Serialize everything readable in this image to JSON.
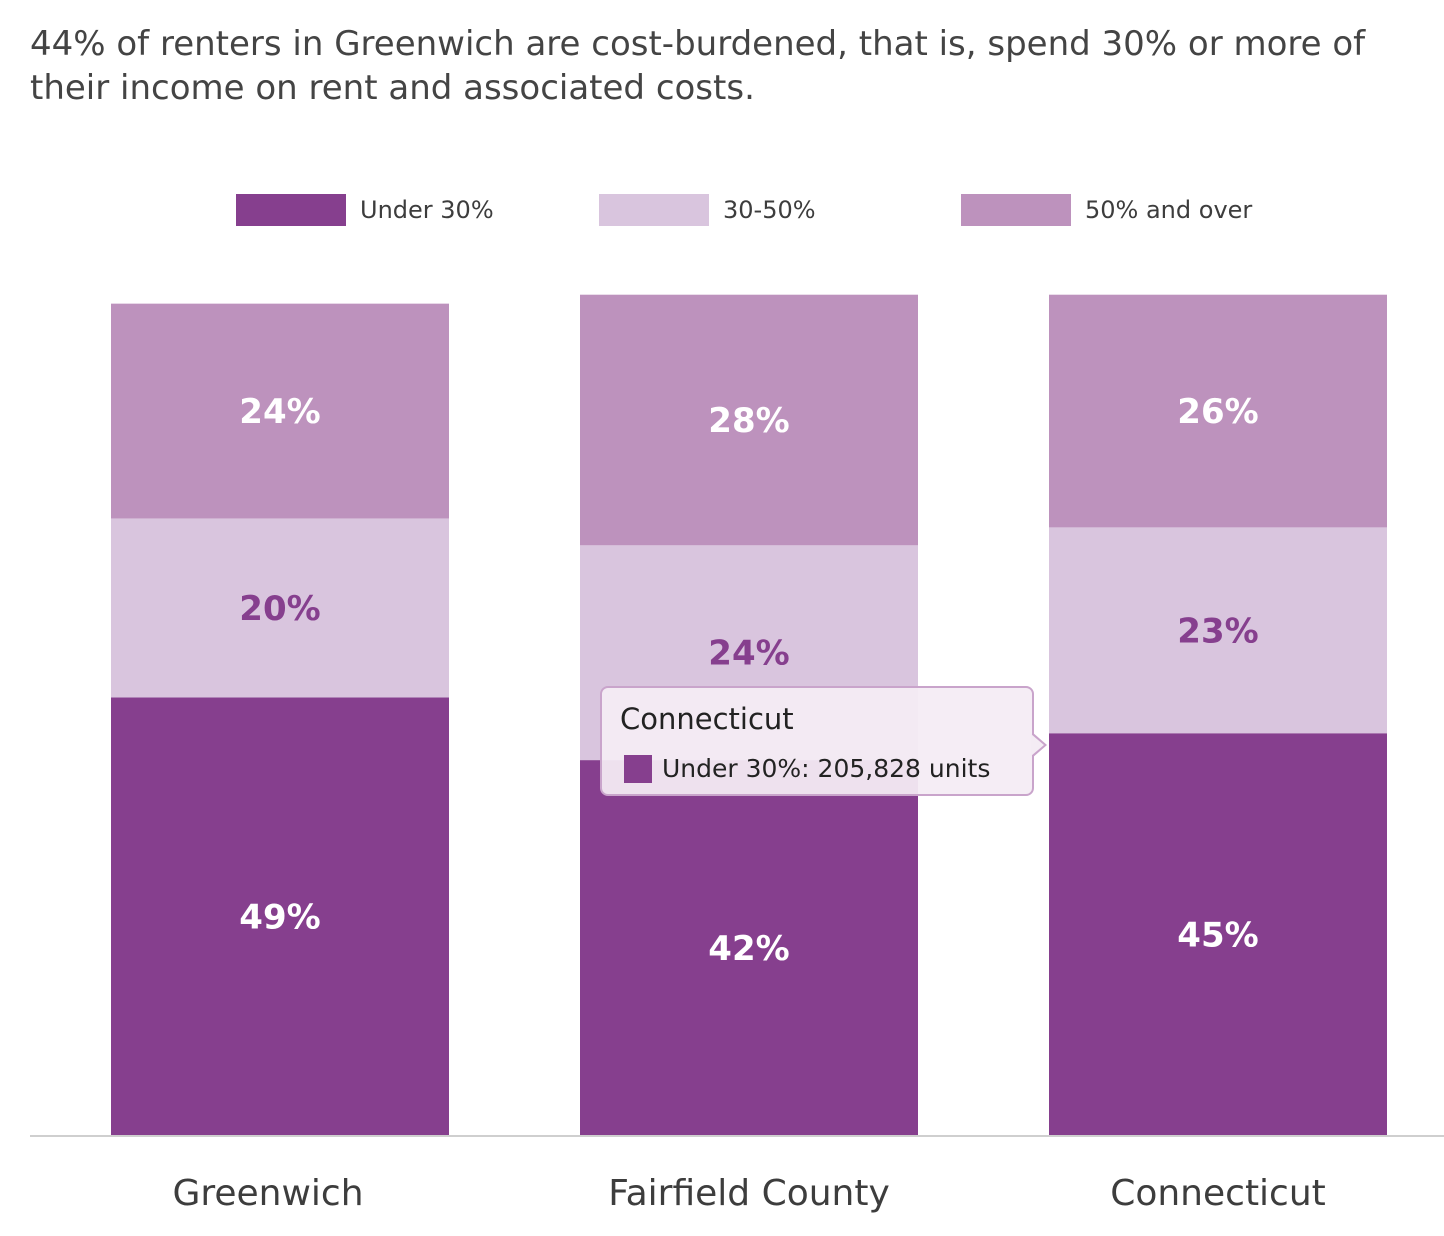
{
  "title": "44% of renters in Greenwich are cost-burdened, that is, spend 30% or more of their income on rent and associated costs.",
  "legend": [
    {
      "label": "Under 30%",
      "color": "#863f8e"
    },
    {
      "label": "30-50%",
      "color": "#d9c5de"
    },
    {
      "label": "50% and over",
      "color": "#bd92bd"
    }
  ],
  "chart_data": {
    "type": "bar",
    "stacked": true,
    "categories": [
      "Greenwich",
      "Fairfield County",
      "Connecticut"
    ],
    "series": [
      {
        "name": "Under 30%",
        "values": [
          49,
          42,
          45
        ],
        "labels": [
          "49%",
          "42%",
          "45%"
        ],
        "color": "#863f8e",
        "label_color": "#ffffff"
      },
      {
        "name": "30-50%",
        "values": [
          20,
          24,
          23
        ],
        "labels": [
          "20%",
          "24%",
          "23%"
        ],
        "color": "#d9c5de",
        "label_color": "#863f8e"
      },
      {
        "name": "50% and over",
        "values": [
          24,
          28,
          26
        ],
        "labels": [
          "24%",
          "28%",
          "26%"
        ],
        "color": "#bd92bd",
        "label_color": "#ffffff"
      }
    ],
    "title": "44% of renters in Greenwich are cost-burdened, that is, spend 30% or more of their income on rent and associated costs.",
    "xlabel": "",
    "ylabel": "",
    "ylim": [
      0,
      100
    ],
    "grid": false,
    "legend_position": "top"
  },
  "tooltip": {
    "title": "Connecticut",
    "series_name": "Under 30%",
    "row_text": "Under 30%: 205,828 units",
    "color": "#863f8e"
  }
}
